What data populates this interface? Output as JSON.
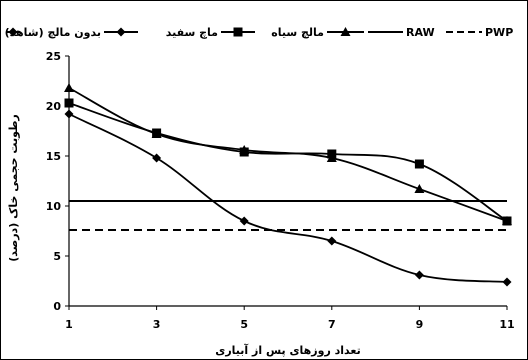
{
  "chart_data": {
    "type": "line",
    "xlabel": "تعداد روزهای پس از آبیاری",
    "ylabel": "رطوبت حجمی خاک (درصد)",
    "x": [
      1,
      3,
      5,
      7,
      9,
      11
    ],
    "xticks": [
      "1",
      "3",
      "5",
      "7",
      "9",
      "11"
    ],
    "yticks": [
      "0",
      "5",
      "10",
      "15",
      "20",
      "25"
    ],
    "xlim": [
      1,
      11
    ],
    "ylim": [
      0,
      25
    ],
    "grid": false,
    "legend_position": "top",
    "series": [
      {
        "name": "بدون مالچ (شاهد)",
        "marker": "diamond",
        "dash": "solid",
        "values": [
          19.2,
          14.8,
          8.5,
          6.5,
          3.1,
          2.4
        ]
      },
      {
        "name": "ماچ سفید",
        "marker": "square",
        "dash": "solid",
        "values": [
          20.3,
          17.3,
          15.4,
          15.2,
          14.2,
          8.5
        ]
      },
      {
        "name": "مالچ سیاه",
        "marker": "triangle",
        "dash": "solid",
        "values": [
          21.8,
          17.2,
          15.6,
          14.8,
          11.7,
          8.5
        ]
      },
      {
        "name": "RAW",
        "marker": "none",
        "dash": "solid",
        "values": [
          10.5,
          10.5,
          10.5,
          10.5,
          10.5,
          10.5
        ]
      },
      {
        "name": "PWP",
        "marker": "none",
        "dash": "dashed",
        "values": [
          7.6,
          7.6,
          7.6,
          7.6,
          7.6,
          7.6
        ]
      }
    ]
  }
}
